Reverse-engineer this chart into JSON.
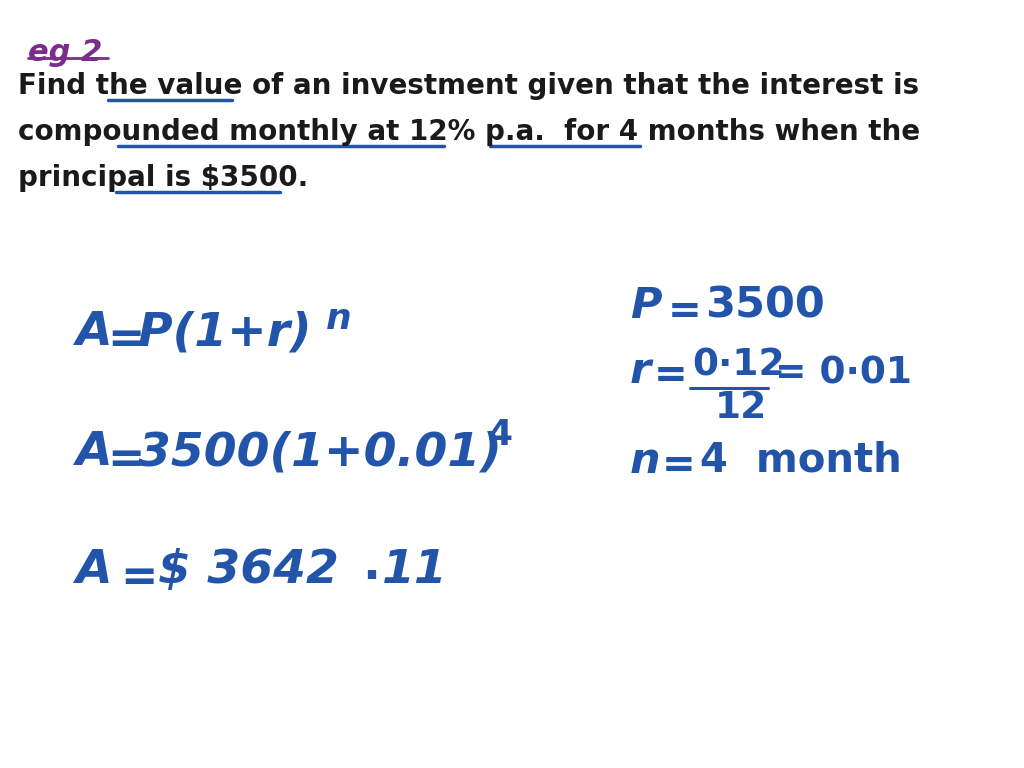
{
  "background_color": "#ffffff",
  "title_color": "#7b2d8b",
  "body_text_color": "#1a1a1a",
  "formula_color": "#2255aa",
  "figsize": [
    10.24,
    7.68
  ],
  "dpi": 100,
  "line1": "Find the value of an investment given that the interest is",
  "line2": "compounded monthly at 12% p.a.  for 4 months when the",
  "line3": "principal is $3500.",
  "body_fontsize": 20,
  "title_fontsize": 22,
  "formula_fontsize": 30,
  "rhs_fontsize": 27
}
